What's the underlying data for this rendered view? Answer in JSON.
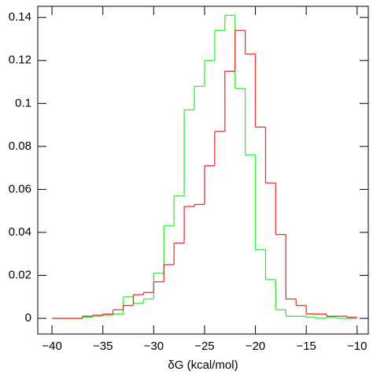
{
  "chart_data": {
    "type": "histogram",
    "x_label": "δG (kcal/mol)",
    "bins": [
      -40,
      -39,
      -38,
      -37,
      -36,
      -35,
      -34,
      -33,
      -32,
      -31,
      -30,
      -29,
      -28,
      -27,
      -26,
      -25,
      -24,
      -23,
      -22,
      -21,
      -20,
      -19,
      -18,
      -17,
      -16,
      -15,
      -14,
      -13,
      -12,
      -11,
      -10
    ],
    "series": [
      {
        "color": "#33ee33",
        "values": [
          0,
          0,
          0,
          0.0005,
          0.001,
          0.0015,
          0.002,
          0.01,
          0.007,
          0.009,
          0.021,
          0.043,
          0.057,
          0.097,
          0.108,
          0.12,
          0.134,
          0.141,
          0.107,
          0.076,
          0.032,
          0.018,
          0.004,
          0.001,
          0.001,
          0.0005,
          0,
          0.0005,
          0,
          0
        ]
      },
      {
        "color": "#ee3333",
        "values": [
          0,
          0,
          0,
          0.001,
          0.0015,
          0.002,
          0.004,
          0.006,
          0.011,
          0.012,
          0.017,
          0.025,
          0.035,
          0.052,
          0.053,
          0.071,
          0.087,
          0.115,
          0.134,
          0.123,
          0.089,
          0.063,
          0.039,
          0.009,
          0.006,
          0.002,
          0.002,
          0.001,
          0.001,
          0.0005
        ]
      }
    ],
    "xlim": [
      -41.4,
      -8.9
    ],
    "ylim": [
      -0.0073,
      0.1452
    ],
    "xticks": [
      {
        "value": -40,
        "label": "−40"
      },
      {
        "value": -35,
        "label": "−35"
      },
      {
        "value": -30,
        "label": "−30"
      },
      {
        "value": -25,
        "label": "−25"
      },
      {
        "value": -20,
        "label": "−20"
      },
      {
        "value": -15,
        "label": "−15"
      },
      {
        "value": -10,
        "label": "−10"
      }
    ],
    "yticks": [
      0,
      0.02,
      0.04,
      0.06,
      0.08,
      0.1,
      0.12,
      0.14
    ]
  }
}
